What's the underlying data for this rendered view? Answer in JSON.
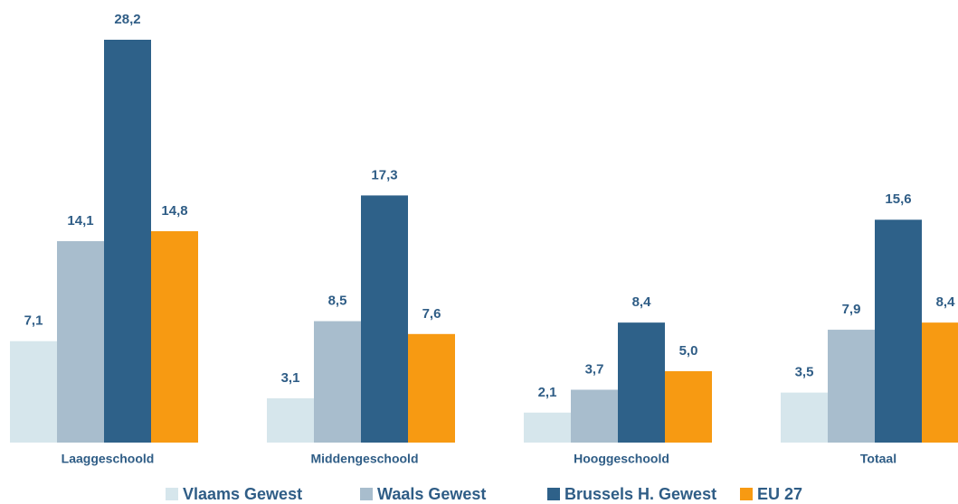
{
  "chart_data": {
    "type": "bar",
    "categories": [
      "Laaggeschoold",
      "Middengeschoold",
      "Hooggeschoold",
      "Totaal"
    ],
    "series": [
      {
        "name": "Vlaams Gewest",
        "color": "#d6e6ec",
        "values": [
          7.1,
          3.1,
          2.1,
          3.5
        ],
        "value_labels": [
          "7,1",
          "3,1",
          "2,1",
          "3,5"
        ]
      },
      {
        "name": "Waals Gewest",
        "color": "#a8bdcd",
        "values": [
          14.1,
          8.5,
          3.7,
          7.9
        ],
        "value_labels": [
          "14,1",
          "8,5",
          "3,7",
          "7,9"
        ]
      },
      {
        "name": "Brussels H. Gewest",
        "color": "#2e6189",
        "values": [
          28.2,
          17.3,
          8.4,
          15.6
        ],
        "value_labels": [
          "28,2",
          "17,3",
          "8,4",
          "15,6"
        ]
      },
      {
        "name": "EU 27",
        "color": "#f79a12",
        "values": [
          14.8,
          7.6,
          5.0,
          8.4
        ],
        "value_labels": [
          "14,8",
          "7,6",
          "5,0",
          "8,4"
        ]
      }
    ]
  }
}
